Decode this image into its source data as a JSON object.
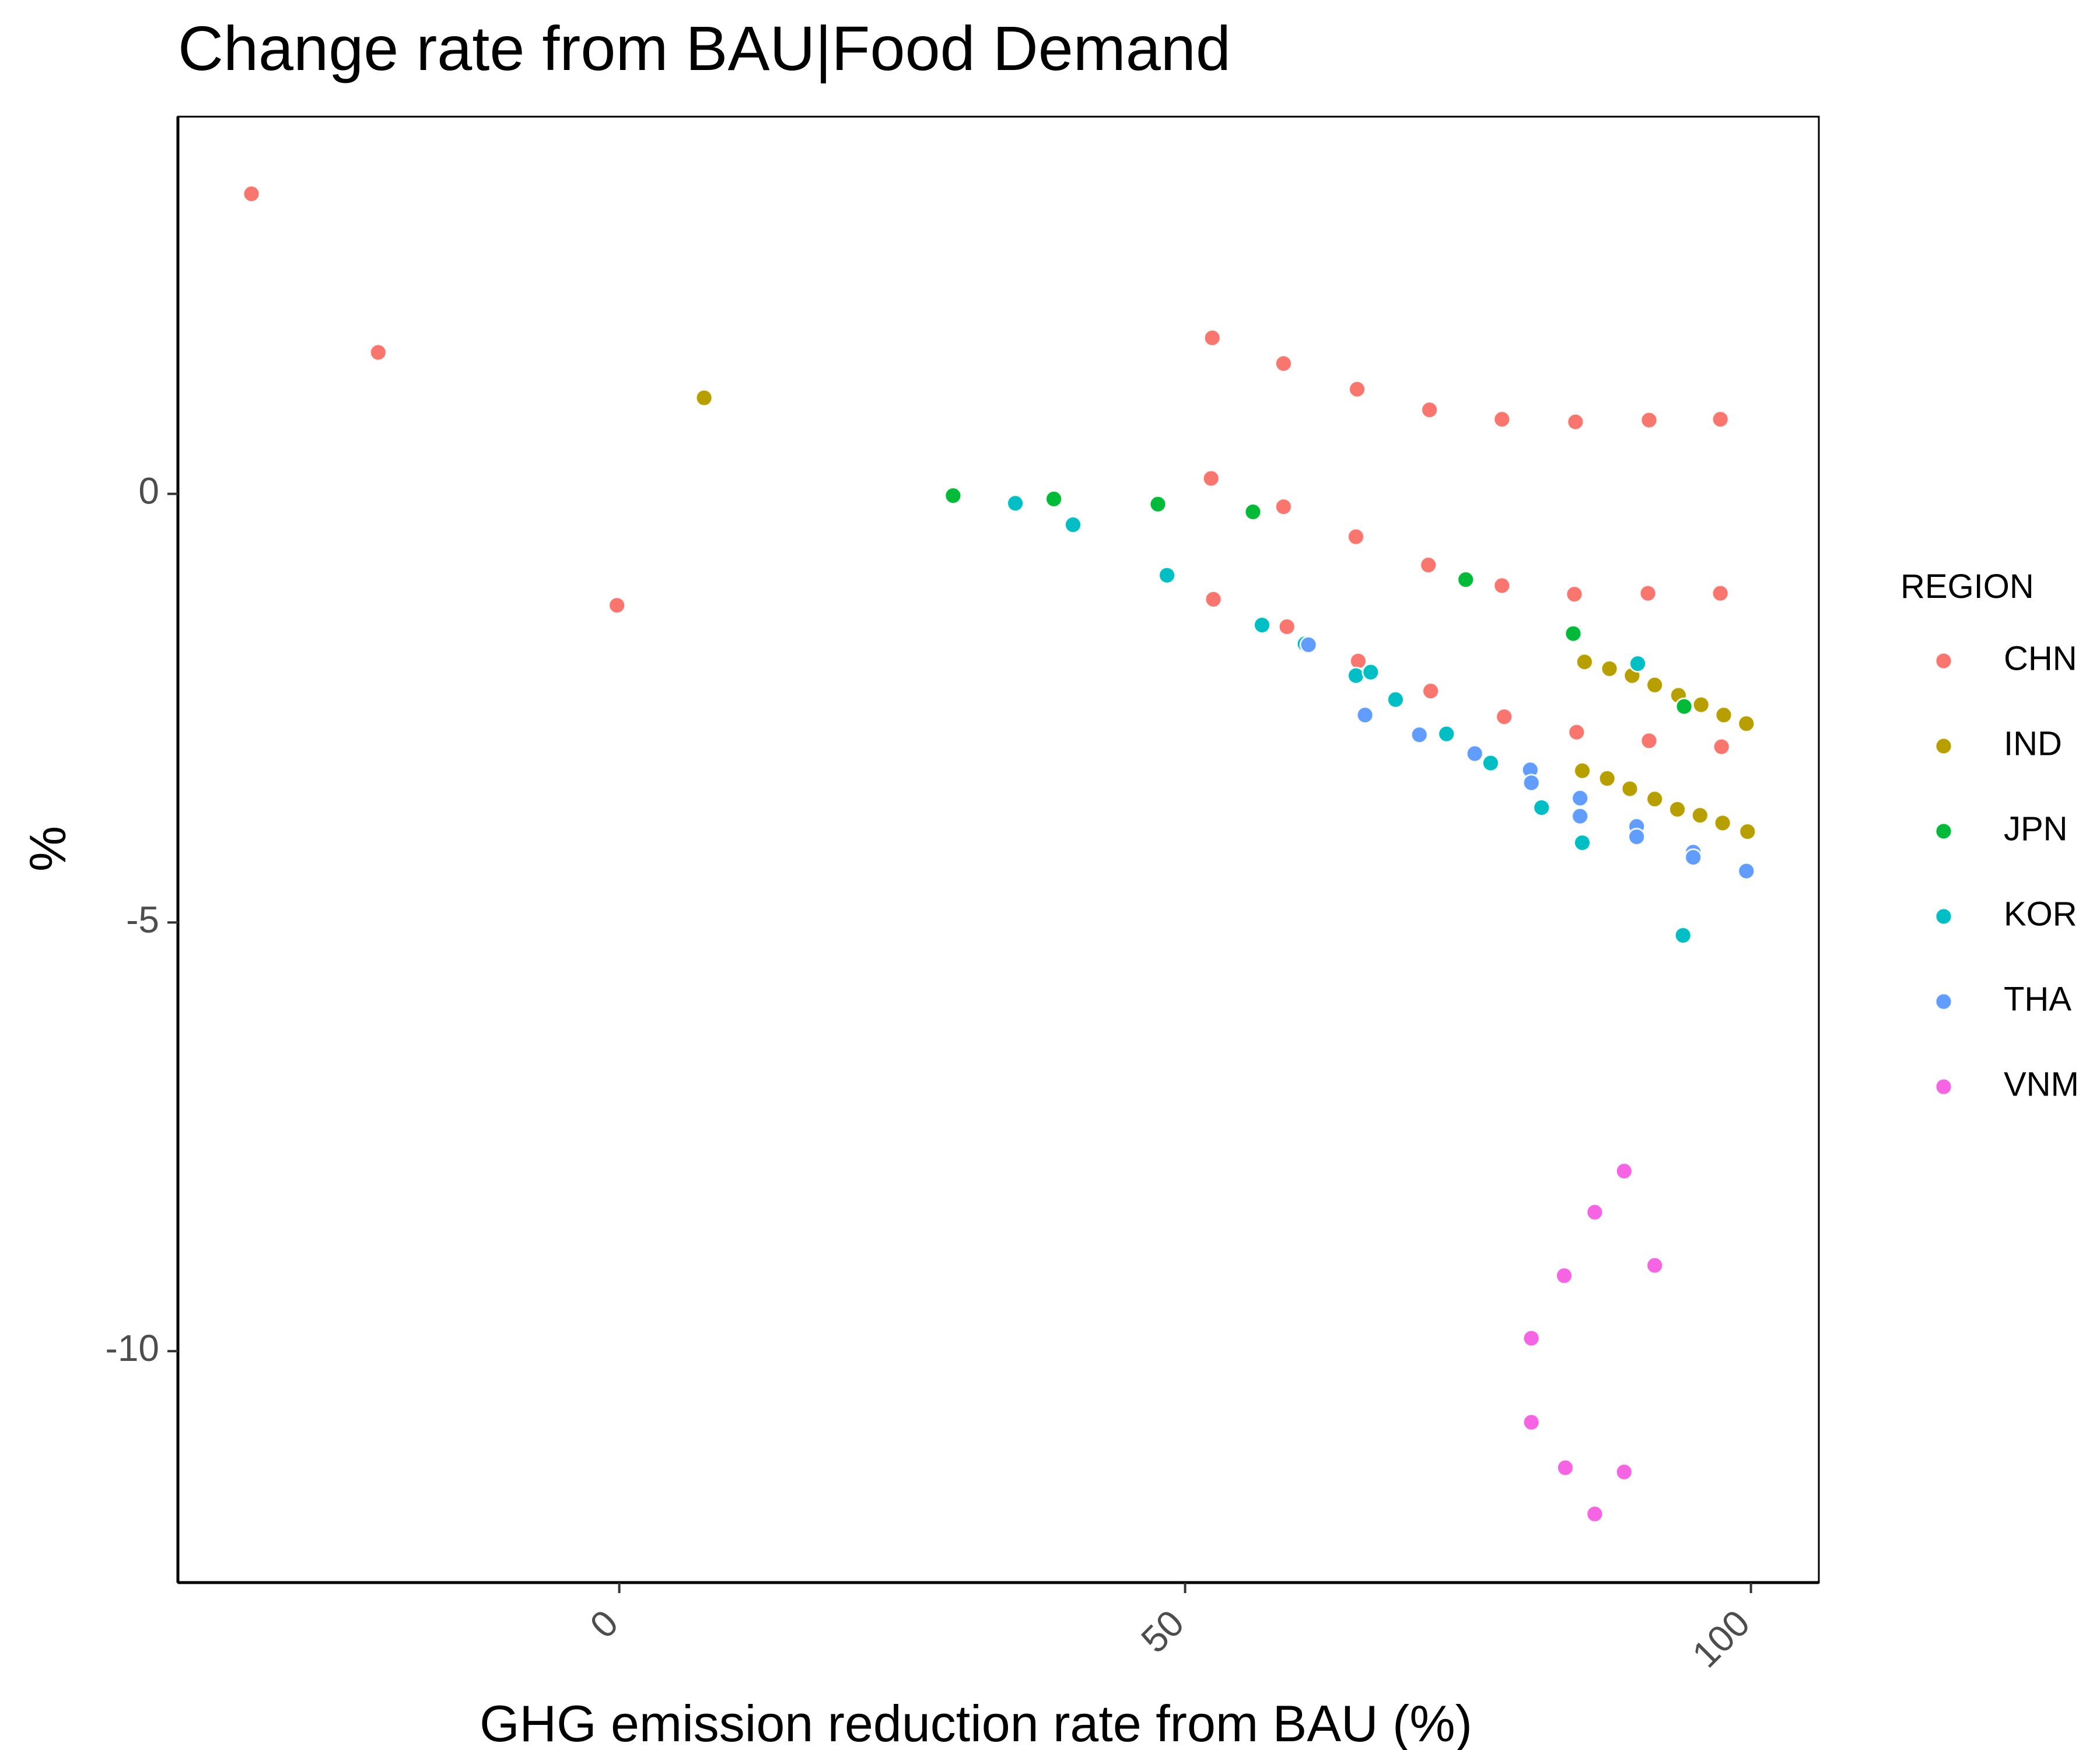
{
  "chart_data": {
    "type": "scatter",
    "title": "Change rate from BAU|Food Demand",
    "xlabel": "GHG emission reduction rate from BAU (%)",
    "ylabel": "%",
    "xlim": [
      -39,
      106
    ],
    "ylim": [
      -12.7,
      4.4
    ],
    "x_ticks": [
      0,
      50,
      100
    ],
    "x_tick_labels": [
      "0",
      "50",
      "100"
    ],
    "y_ticks": [
      0,
      -5,
      -10
    ],
    "y_tick_labels": [
      "0",
      "-5",
      "-10"
    ],
    "grid": false,
    "legend": {
      "title": "REGION",
      "position": "right"
    },
    "series": [
      {
        "name": "CHN",
        "color": "#F8766D",
        "points": [
          [
            -32.5,
            3.5
          ],
          [
            -21.3,
            1.65
          ],
          [
            -0.2,
            -1.3
          ],
          [
            52.4,
            1.82
          ],
          [
            58.7,
            1.52
          ],
          [
            65.2,
            1.22
          ],
          [
            71.6,
            0.98
          ],
          [
            78.0,
            0.87
          ],
          [
            84.5,
            0.84
          ],
          [
            91.0,
            0.86
          ],
          [
            97.3,
            0.87
          ],
          [
            52.3,
            0.18
          ],
          [
            58.7,
            -0.15
          ],
          [
            65.1,
            -0.5
          ],
          [
            71.5,
            -0.83
          ],
          [
            78.0,
            -1.07
          ],
          [
            84.4,
            -1.17
          ],
          [
            90.9,
            -1.16
          ],
          [
            97.3,
            -1.16
          ],
          [
            52.5,
            -1.23
          ],
          [
            59.0,
            -1.55
          ],
          [
            65.3,
            -1.95
          ],
          [
            71.7,
            -2.3
          ],
          [
            78.2,
            -2.6
          ],
          [
            84.6,
            -2.78
          ],
          [
            91.0,
            -2.88
          ],
          [
            97.4,
            -2.95
          ]
        ]
      },
      {
        "name": "IND",
        "color": "#B79F00",
        "points": [
          [
            7.5,
            1.12
          ],
          [
            85.3,
            -1.96
          ],
          [
            87.5,
            -2.04
          ],
          [
            89.5,
            -2.12
          ],
          [
            91.5,
            -2.23
          ],
          [
            93.6,
            -2.35
          ],
          [
            95.6,
            -2.46
          ],
          [
            97.6,
            -2.58
          ],
          [
            99.6,
            -2.68
          ],
          [
            85.1,
            -3.23
          ],
          [
            87.3,
            -3.32
          ],
          [
            89.3,
            -3.44
          ],
          [
            91.5,
            -3.56
          ],
          [
            93.5,
            -3.68
          ],
          [
            95.5,
            -3.75
          ],
          [
            97.5,
            -3.84
          ],
          [
            99.7,
            -3.94
          ]
        ]
      },
      {
        "name": "JPN",
        "color": "#00BA38",
        "points": [
          [
            29.5,
            -0.02
          ],
          [
            38.4,
            -0.06
          ],
          [
            47.6,
            -0.12
          ],
          [
            56.0,
            -0.21
          ],
          [
            74.8,
            -1.0
          ],
          [
            84.3,
            -1.63
          ],
          [
            94.1,
            -2.48
          ]
        ]
      },
      {
        "name": "KOR",
        "color": "#00BFC4",
        "points": [
          [
            35.0,
            -0.11
          ],
          [
            40.1,
            -0.36
          ],
          [
            48.4,
            -0.95
          ],
          [
            56.8,
            -1.53
          ],
          [
            60.6,
            -1.75
          ],
          [
            65.1,
            -2.12
          ],
          [
            66.4,
            -2.08
          ],
          [
            68.6,
            -2.4
          ],
          [
            73.1,
            -2.8
          ],
          [
            77.0,
            -3.14
          ],
          [
            81.5,
            -3.66
          ],
          [
            85.1,
            -4.07
          ],
          [
            90.0,
            -1.98
          ],
          [
            94.0,
            -5.15
          ]
        ]
      },
      {
        "name": "THA",
        "color": "#619CFF",
        "points": [
          [
            60.9,
            -1.76
          ],
          [
            65.9,
            -2.58
          ],
          [
            70.7,
            -2.81
          ],
          [
            75.6,
            -3.03
          ],
          [
            80.5,
            -3.22
          ],
          [
            80.6,
            -3.37
          ],
          [
            84.9,
            -3.55
          ],
          [
            84.9,
            -3.76
          ],
          [
            89.9,
            -3.88
          ],
          [
            89.9,
            -4.0
          ],
          [
            94.9,
            -4.18
          ],
          [
            94.9,
            -4.24
          ],
          [
            99.6,
            -4.4
          ]
        ]
      },
      {
        "name": "VNM",
        "color": "#F564E3",
        "points": [
          [
            80.6,
            -9.85
          ],
          [
            83.5,
            -9.12
          ],
          [
            86.2,
            -8.38
          ],
          [
            88.8,
            -7.9
          ],
          [
            91.5,
            -9.0
          ],
          [
            80.6,
            -10.83
          ],
          [
            83.6,
            -11.36
          ],
          [
            88.8,
            -11.41
          ],
          [
            86.2,
            -11.9
          ]
        ]
      }
    ]
  }
}
